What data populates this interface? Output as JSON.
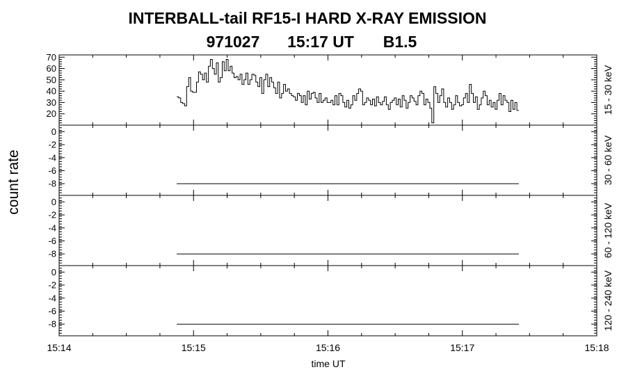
{
  "chart_data": {
    "type": "line",
    "title": "INTERBALL-tail  RF15-I  HARD  X-RAY  EMISSION",
    "subtitle": [
      "971027",
      "15:17 UT",
      "B1.5"
    ],
    "xlabel": "time UT",
    "ylabel": "count rate",
    "x_ticks": [
      "15:14",
      "15:15",
      "15:16",
      "15:17",
      "15:18"
    ],
    "xlim_minutes": [
      0,
      4
    ],
    "panels": [
      {
        "label": "15 - 30 keV",
        "ylim": [
          10,
          72
        ],
        "yticks": [
          20,
          30,
          40,
          50,
          60,
          70
        ],
        "line_type": "step",
        "x_start_minutes": 0.875,
        "x_end_minutes": 3.42,
        "values": [
          35,
          34,
          30,
          29,
          27,
          44,
          52,
          40,
          39,
          39,
          48,
          57,
          55,
          50,
          56,
          48,
          62,
          68,
          60,
          55,
          65,
          48,
          52,
          66,
          58,
          68,
          58,
          62,
          56,
          52,
          53,
          50,
          55,
          46,
          50,
          56,
          46,
          50,
          55,
          54,
          48,
          44,
          52,
          38,
          50,
          55,
          44,
          52,
          48,
          43,
          38,
          48,
          34,
          38,
          46,
          40,
          42,
          38,
          36,
          35,
          32,
          38,
          36,
          30,
          36,
          28,
          40,
          33,
          38,
          39,
          34,
          30,
          38,
          30,
          32,
          34,
          30,
          30,
          32,
          28,
          36,
          28,
          38,
          36,
          30,
          26,
          32,
          25,
          28,
          36,
          32,
          38,
          42,
          40,
          28,
          30,
          34,
          32,
          28,
          33,
          27,
          35,
          30,
          28,
          31,
          35,
          28,
          24,
          30,
          32,
          34,
          28,
          33,
          26,
          36,
          32,
          25,
          30,
          36,
          34,
          31,
          28,
          36,
          40,
          38,
          28,
          33,
          30,
          25,
          12,
          44,
          38,
          30,
          36,
          42,
          30,
          26,
          34,
          30,
          24,
          28,
          36,
          30,
          27,
          28,
          34,
          38,
          30,
          46,
          38,
          30,
          35,
          24,
          28,
          34,
          40,
          36,
          28,
          32,
          26,
          30,
          24,
          32,
          38,
          28,
          36,
          32,
          30,
          22,
          32,
          24,
          30,
          23
        ]
      },
      {
        "label": "30 - 60 keV",
        "ylim": [
          -9.8,
          1
        ],
        "yticks": [
          -8,
          -6,
          -4,
          -2,
          0
        ],
        "line_type": "flat",
        "x_start_minutes": 0.875,
        "x_end_minutes": 3.42,
        "values": [
          -8,
          -8
        ]
      },
      {
        "label": "60 - 120 keV",
        "ylim": [
          -9.8,
          1
        ],
        "yticks": [
          -8,
          -6,
          -4,
          -2,
          0
        ],
        "line_type": "flat",
        "x_start_minutes": 0.875,
        "x_end_minutes": 3.42,
        "values": [
          -8,
          -8
        ]
      },
      {
        "label": "120 - 240 keV",
        "ylim": [
          -9.8,
          1
        ],
        "yticks": [
          -8,
          -6,
          -4,
          -2,
          0
        ],
        "line_type": "flat",
        "x_start_minutes": 0.875,
        "x_end_minutes": 3.42,
        "values": [
          -8,
          -8
        ]
      }
    ]
  }
}
